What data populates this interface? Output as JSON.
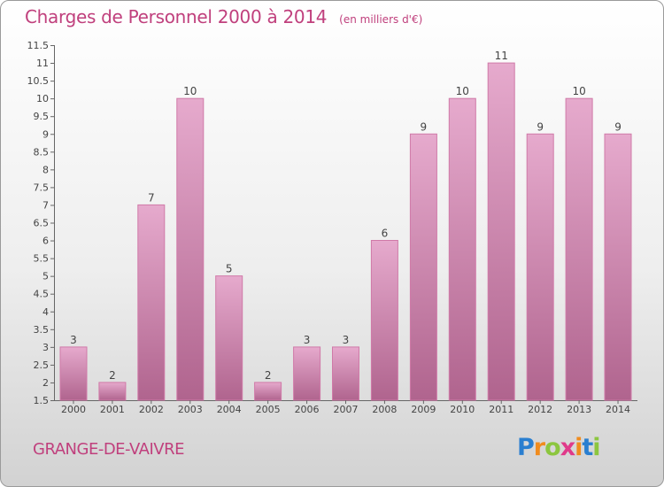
{
  "title": "Charges de Personnel 2000 à 2014",
  "subtitle": "(en milliers d'€)",
  "commune": "GRANGE-DE-VAIVRE",
  "brand": {
    "letters": [
      "P",
      "r",
      "o",
      "x",
      "i",
      "t",
      "i"
    ],
    "colors": [
      "#2a7fd0",
      "#f08c1e",
      "#8cc63f",
      "#e03a8a",
      "#f08c1e",
      "#2a7fd0",
      "#8cc63f"
    ]
  },
  "colors": {
    "bar_top": "#e6aacd",
    "bar_bottom": "#b0648e",
    "bar_border": "#d07aa8",
    "title": "#c0407d"
  },
  "chart_data": {
    "type": "bar",
    "categories": [
      "2000",
      "2001",
      "2002",
      "2003",
      "2004",
      "2005",
      "2006",
      "2007",
      "2008",
      "2009",
      "2010",
      "2011",
      "2012",
      "2013",
      "2014"
    ],
    "values": [
      3,
      2,
      7,
      10,
      5,
      2,
      3,
      3,
      6,
      9,
      10,
      11,
      9,
      10,
      9
    ],
    "data_labels": [
      "3",
      "2",
      "7",
      "10",
      "5",
      "2",
      "3",
      "3",
      "6",
      "9",
      "10",
      "11",
      "9",
      "10",
      "9"
    ],
    "ylim": [
      1.5,
      11.5
    ],
    "yticks": [
      1.5,
      2,
      2.5,
      3,
      3.5,
      4,
      4.5,
      5,
      5.5,
      6,
      6.5,
      7,
      7.5,
      8,
      8.5,
      9,
      9.5,
      10,
      10.5,
      11,
      11.5
    ],
    "ytick_labels": [
      "1.5",
      "2",
      "2.5",
      "3",
      "3.5",
      "4",
      "4.5",
      "5",
      "5.5",
      "6",
      "6.5",
      "7",
      "7.5",
      "8",
      "8.5",
      "9",
      "9.5",
      "10",
      "10.5",
      "11",
      "11.5"
    ],
    "grid": false,
    "xlabel": "",
    "ylabel": ""
  }
}
